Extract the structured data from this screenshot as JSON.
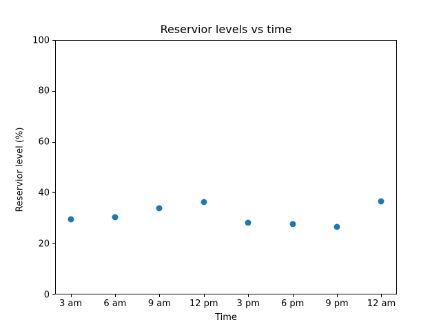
{
  "chart_data": {
    "type": "scatter",
    "title": "Reservior levels vs time",
    "xlabel": "Time",
    "ylabel": "Reservior level (%)",
    "categories": [
      "3 am",
      "6 am",
      "9 am",
      "12 pm",
      "3 pm",
      "6 pm",
      "9 pm",
      "12 am"
    ],
    "values": [
      29.5,
      30.4,
      33.9,
      36.2,
      28.1,
      27.6,
      26.5,
      36.5
    ],
    "ylim": [
      0,
      100
    ],
    "yticks": [
      0,
      20,
      40,
      60,
      80,
      100
    ],
    "grid": false,
    "legend": "none",
    "marker_color": "#1f77b4",
    "axis_color": "#000000",
    "background_color": "#ffffff"
  }
}
